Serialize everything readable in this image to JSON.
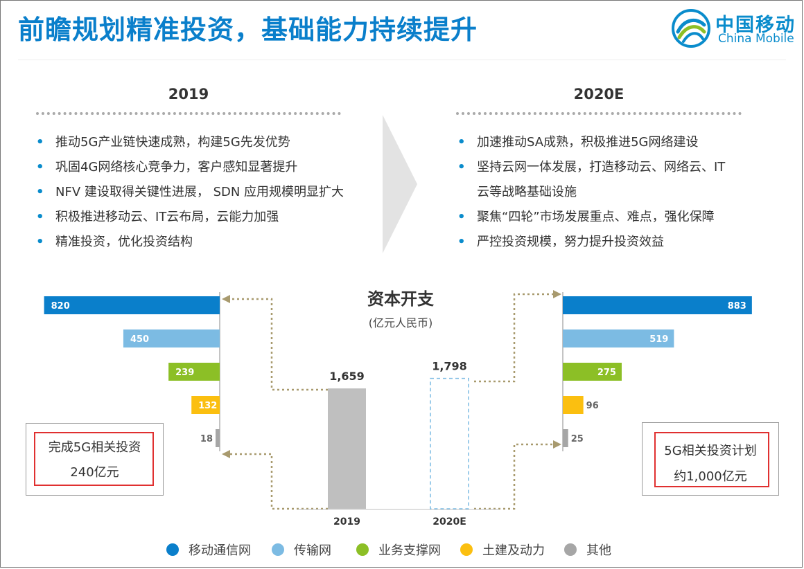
{
  "header": {
    "title": "前瞻规划精准投资，基础能力持续提升",
    "logo_cn": "中国移动",
    "logo_en": "China Mobile"
  },
  "left_panel": {
    "year": "2019",
    "bullets": [
      "推动5G产业链快速成熟，构建5G先发优势",
      "巩固4G网络核心竞争力，客户感知显著提升",
      "NFV 建设取得关键性进展， SDN 应用规模明显扩大",
      "积极推进移动云、IT云布局，云能力加强",
      "精准投资，优化投资结构"
    ]
  },
  "right_panel": {
    "year": "2020E",
    "bullets": [
      "加速推动SA成熟，积极推进5G网络建设",
      "坚持云网一体发展，打造移动云、网络云、IT",
      "云等战略基础设施",
      "聚焦“四轮”市场发展重点、难点，强化保障",
      "严控投资规模，努力提升投资效益"
    ]
  },
  "bullet_char": "•",
  "left_box": {
    "line1": "完成5G相关投资",
    "line2": "240亿元"
  },
  "right_box": {
    "line1": "5G相关投资计划",
    "line2": "约1,000亿元"
  },
  "legend": [
    {
      "label": "移动通信网",
      "color": "#0a7fcb"
    },
    {
      "label": "传输网",
      "color": "#7cbbe3"
    },
    {
      "label": "业务支撑网",
      "color": "#8cbf26"
    },
    {
      "label": "土建及动力",
      "color": "#fbbf10"
    },
    {
      "label": "其他",
      "color": "#a6a6a6"
    }
  ],
  "chart_data": [
    {
      "type": "bar",
      "orientation": "horizontal",
      "categories": [
        "移动通信网",
        "传输网",
        "业务支撑网",
        "土建及动力",
        "其他"
      ],
      "values": [
        820,
        450,
        239,
        132,
        18
      ],
      "labels": [
        "820",
        "450",
        "239",
        "132",
        "18"
      ],
      "colors": [
        "#0a7fcb",
        "#7cbbe3",
        "#8cbf26",
        "#fbbf10",
        "#a6a6a6"
      ],
      "direction": "right-to-left"
    },
    {
      "type": "bar",
      "title": "资本开支",
      "subtitle": "(亿元人民币)",
      "categories": [
        "2019",
        "2020E"
      ],
      "values": [
        1659,
        1798
      ],
      "labels": [
        "1,659",
        "1,798"
      ],
      "styles": [
        "solid",
        "dashed"
      ],
      "colors": [
        "#bfbfbf",
        "#7cbbe3"
      ]
    },
    {
      "type": "bar",
      "orientation": "horizontal",
      "categories": [
        "移动通信网",
        "传输网",
        "业务支撑网",
        "土建及动力",
        "其他"
      ],
      "values": [
        883,
        519,
        275,
        96,
        25
      ],
      "labels": [
        "883",
        "519",
        "275",
        "96",
        "25"
      ],
      "colors": [
        "#0a7fcb",
        "#7cbbe3",
        "#8cbf26",
        "#fbbf10",
        "#a6a6a6"
      ],
      "direction": "left-to-right"
    }
  ]
}
